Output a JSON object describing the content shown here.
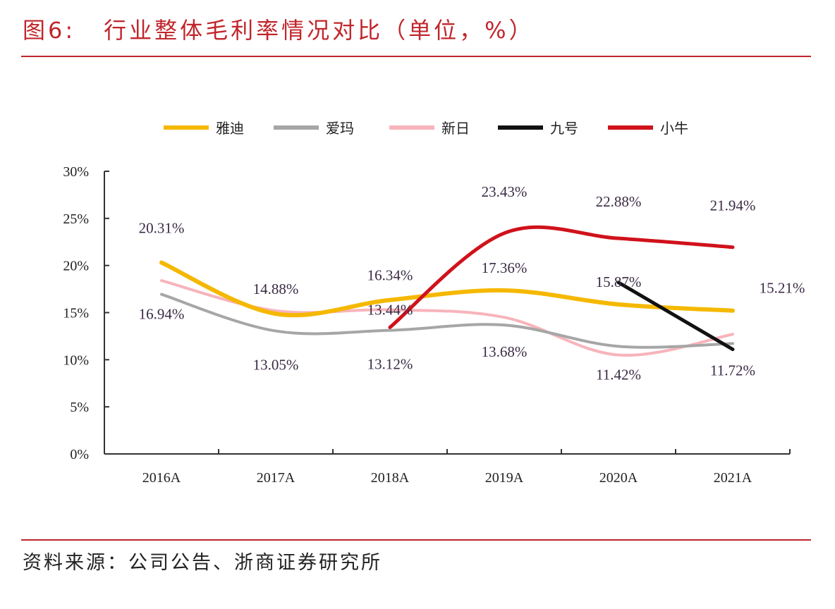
{
  "header": {
    "figure_no": "图6:",
    "title": "行业整体毛利率情况对比（单位，%）"
  },
  "footer": {
    "source": "资料来源：公司公告、浙商证券研究所"
  },
  "chart_data": {
    "type": "line",
    "title": "行业整体毛利率情况对比（单位，%）",
    "categories": [
      "2016A",
      "2017A",
      "2018A",
      "2019A",
      "2020A",
      "2021A"
    ],
    "ylim": [
      0,
      30
    ],
    "yticks": [
      "0%",
      "5%",
      "10%",
      "15%",
      "20%",
      "25%",
      "30%"
    ],
    "grid": false,
    "legend_position": "top",
    "series": [
      {
        "name": "雅迪",
        "color": "#f5b800",
        "values": [
          20.31,
          14.88,
          16.34,
          17.36,
          15.87,
          15.21
        ],
        "labels": [
          "20.31%",
          "14.88%",
          "16.34%",
          "17.36%",
          "15.87%",
          "15.21%"
        ]
      },
      {
        "name": "爱玛",
        "color": "#a6a6a6",
        "values": [
          16.94,
          13.05,
          13.12,
          13.68,
          11.42,
          11.72
        ],
        "labels": [
          "16.94%",
          "13.05%",
          "13.12%",
          "13.68%",
          "11.42%",
          "11.72%"
        ]
      },
      {
        "name": "新日",
        "color": "#f7b4bb",
        "values": [
          18.4,
          15.2,
          15.3,
          14.5,
          10.5,
          12.7
        ],
        "labels": []
      },
      {
        "name": "九号",
        "color": "#111111",
        "values": [
          null,
          null,
          null,
          null,
          18.2,
          11.1
        ],
        "labels": []
      },
      {
        "name": "小牛",
        "color": "#d0121b",
        "values": [
          null,
          null,
          13.44,
          23.43,
          22.88,
          21.94
        ],
        "labels": [
          null,
          null,
          "13.44%",
          "23.43%",
          "22.88%",
          "21.94%"
        ]
      }
    ]
  }
}
